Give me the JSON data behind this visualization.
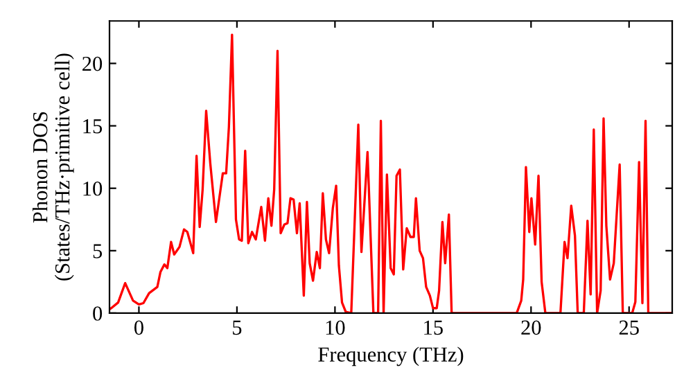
{
  "chart_data": {
    "type": "line",
    "xlabel": "Frequency (THz)",
    "ylabel": "Phonon DOS\n(States/THz·primitive cell)",
    "xlim": [
      -1.5,
      27.2
    ],
    "ylim": [
      0,
      23.4
    ],
    "xticks": [
      0,
      5,
      10,
      15,
      20,
      25
    ],
    "yticks": [
      0,
      5,
      10,
      15,
      20
    ],
    "grid": false,
    "legend": false,
    "marker": "none",
    "line_style": "solid",
    "series": [
      {
        "color": "#ff0000",
        "x": [
          -1.5,
          -1.41,
          -1.06,
          -0.7,
          -0.3,
          0,
          0.23,
          0.52,
          0.94,
          1.1,
          1.3,
          1.45,
          1.64,
          1.8,
          2.07,
          2.3,
          2.47,
          2.77,
          2.94,
          3.1,
          3.25,
          3.43,
          3.64,
          3.93,
          4.28,
          4.45,
          4.59,
          4.75,
          4.95,
          5.11,
          5.25,
          5.42,
          5.58,
          5.77,
          5.96,
          6.24,
          6.43,
          6.6,
          6.76,
          6.9,
          7.07,
          7.23,
          7.42,
          7.58,
          7.73,
          7.89,
          8.06,
          8.2,
          8.41,
          8.57,
          8.71,
          8.88,
          9.07,
          9.23,
          9.38,
          9.54,
          9.7,
          9.89,
          10.06,
          10.2,
          10.36,
          10.55,
          10.83,
          11.19,
          11.35,
          11.66,
          11.96,
          12.2,
          12.34,
          12.48,
          12.65,
          12.84,
          13.0,
          13.14,
          13.31,
          13.48,
          13.66,
          13.85,
          14.02,
          14.13,
          14.32,
          14.49,
          14.65,
          14.84,
          15.0,
          15.19,
          15.31,
          15.48,
          15.62,
          15.81,
          15.95,
          19.27,
          19.5,
          19.6,
          19.74,
          19.91,
          20.02,
          20.21,
          20.38,
          20.54,
          20.73,
          21.5,
          21.71,
          21.86,
          22.05,
          22.24,
          22.38,
          22.69,
          22.88,
          23.04,
          23.2,
          23.37,
          23.55,
          23.7,
          23.84,
          24.03,
          24.22,
          24.52,
          24.68,
          25.16,
          25.32,
          25.51,
          25.68,
          25.84,
          25.98,
          27.2
        ],
        "values": [
          0.3,
          0.4,
          0.85,
          2.4,
          1.0,
          0.7,
          0.8,
          1.6,
          2.1,
          3.3,
          3.9,
          3.6,
          5.7,
          4.7,
          5.3,
          6.7,
          6.5,
          4.8,
          12.6,
          6.9,
          9.9,
          16.2,
          12.0,
          7.3,
          11.2,
          11.2,
          14.9,
          22.3,
          7.5,
          5.9,
          5.8,
          13.0,
          5.6,
          6.5,
          5.9,
          8.5,
          5.8,
          9.2,
          7.0,
          9.9,
          21.0,
          6.4,
          7.1,
          7.2,
          9.2,
          9.1,
          6.4,
          8.8,
          1.4,
          8.9,
          4.0,
          2.6,
          4.9,
          3.6,
          9.6,
          5.9,
          4.8,
          8.4,
          10.2,
          3.8,
          0.85,
          0.1,
          0,
          15.1,
          4.9,
          12.9,
          0,
          0,
          15.4,
          0,
          11.1,
          3.6,
          3.1,
          11.0,
          11.5,
          3.5,
          6.8,
          6.1,
          6.1,
          9.2,
          5.0,
          4.4,
          2.1,
          1.4,
          0.4,
          0.4,
          1.8,
          7.3,
          4.0,
          7.9,
          0,
          0,
          1.0,
          2.7,
          11.7,
          6.5,
          9.2,
          5.5,
          11.0,
          2.5,
          0,
          0,
          5.7,
          4.4,
          8.6,
          6.2,
          0,
          0,
          7.4,
          1.5,
          14.7,
          0,
          1.8,
          15.6,
          7.0,
          2.7,
          4.0,
          11.9,
          0,
          0,
          0.9,
          12.1,
          0.8,
          15.4,
          0,
          0
        ]
      }
    ]
  }
}
